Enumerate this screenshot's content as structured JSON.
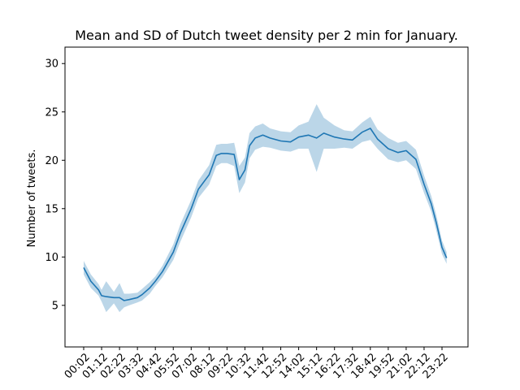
{
  "chart_data": {
    "type": "line",
    "title": "Mean and SD of Dutch tweet density per 2 min for January.",
    "xlabel": "",
    "ylabel": "Number of tweets.",
    "ylim": [
      0.7,
      31.7
    ],
    "yticks": [
      5,
      10,
      15,
      20,
      25,
      30
    ],
    "ytick_labels": [
      "5",
      "10",
      "15",
      "20",
      "25",
      "30"
    ],
    "xtick_labels": [
      "00:02",
      "01:12",
      "02:22",
      "03:32",
      "04:42",
      "05:52",
      "07:02",
      "08:12",
      "09:22",
      "10:32",
      "11:42",
      "12:52",
      "14:02",
      "15:12",
      "16:22",
      "17:32",
      "18:42",
      "19:52",
      "21:02",
      "22:12",
      "23:22"
    ],
    "grid": false,
    "legend": "none",
    "colors": {
      "line": "#1f77b4",
      "band": "#1f77b4"
    },
    "series": [
      {
        "x": [
          "00:02",
          "00:30",
          "01:00",
          "01:12",
          "01:30",
          "02:00",
          "02:22",
          "02:40",
          "03:00",
          "03:32",
          "03:50",
          "04:20",
          "04:42",
          "05:10",
          "05:52",
          "06:20",
          "07:02",
          "07:30",
          "08:12",
          "08:40",
          "09:00",
          "09:22",
          "09:50",
          "10:10",
          "10:32",
          "10:50",
          "11:12",
          "11:42",
          "12:10",
          "12:52",
          "13:30",
          "14:02",
          "14:40",
          "15:12",
          "15:40",
          "16:22",
          "17:00",
          "17:32",
          "18:10",
          "18:42",
          "19:10",
          "19:52",
          "20:30",
          "21:02",
          "21:40",
          "22:12",
          "22:40",
          "23:00",
          "23:22",
          "23:40"
        ],
        "mean": [
          8.9,
          7.5,
          6.6,
          6.0,
          5.9,
          5.8,
          5.8,
          5.5,
          5.6,
          5.8,
          6.1,
          6.8,
          7.5,
          8.5,
          10.5,
          12.5,
          15.0,
          17.0,
          18.5,
          20.5,
          20.7,
          20.7,
          20.6,
          18.0,
          19.0,
          21.5,
          22.3,
          22.6,
          22.3,
          22.0,
          21.9,
          22.4,
          22.6,
          22.3,
          22.8,
          22.4,
          22.2,
          22.1,
          22.9,
          23.3,
          22.2,
          21.2,
          20.8,
          21.0,
          20.1,
          17.5,
          15.5,
          13.5,
          11.0,
          9.9
        ],
        "sd": [
          0.7,
          0.7,
          0.6,
          0.6,
          1.6,
          0.6,
          1.5,
          0.7,
          0.6,
          0.5,
          0.6,
          0.6,
          0.5,
          0.6,
          0.8,
          0.9,
          0.9,
          0.9,
          1.0,
          1.1,
          1.0,
          1.0,
          1.2,
          1.4,
          1.3,
          1.3,
          1.2,
          1.2,
          1.0,
          1.0,
          1.0,
          1.2,
          1.4,
          3.5,
          1.6,
          1.2,
          0.9,
          0.9,
          1.0,
          1.2,
          1.0,
          1.1,
          1.0,
          1.0,
          1.0,
          0.9,
          0.8,
          0.8,
          0.7,
          0.6
        ]
      }
    ]
  }
}
